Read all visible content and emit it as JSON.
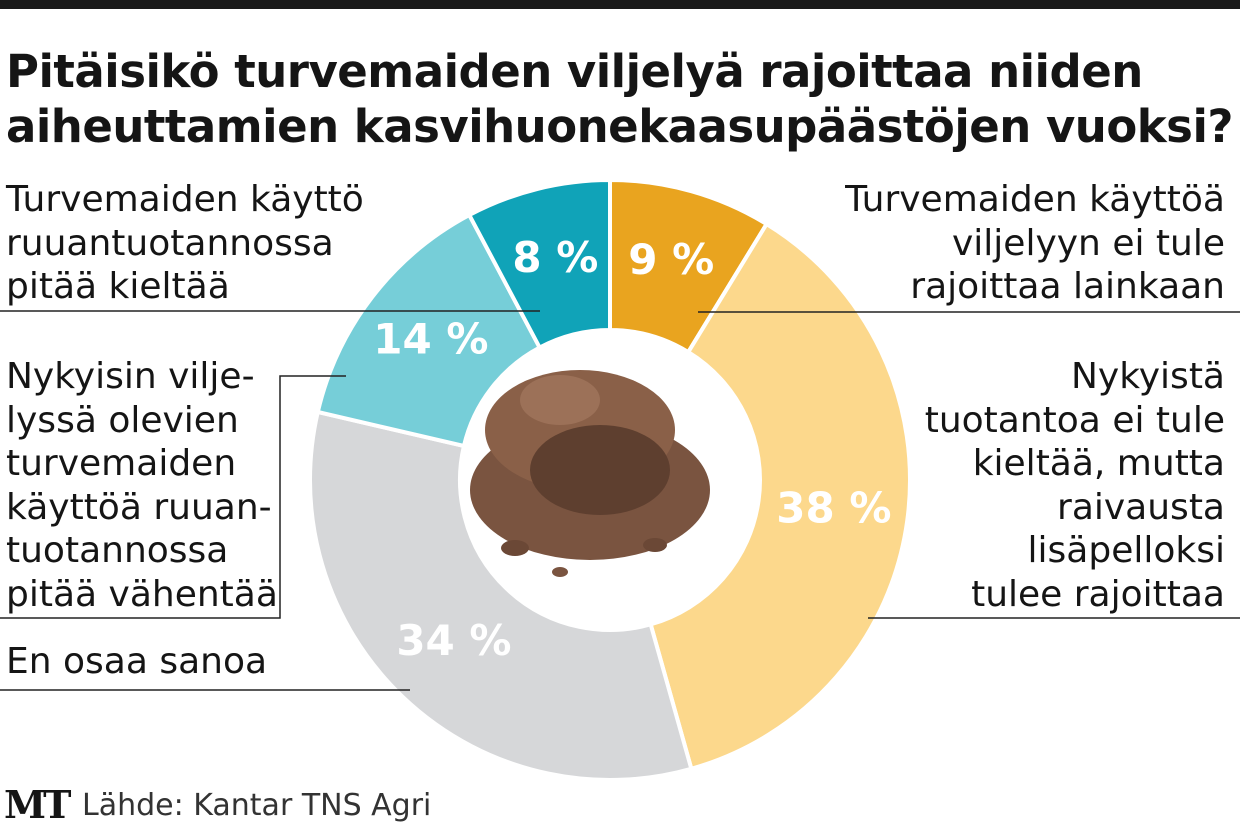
{
  "chart_data": {
    "type": "pie",
    "title": "Pitäisikö turvemaiden viljelyä rajoittaa niiden aiheuttamien kasvihuonekaasupäästöjen vuoksi?",
    "categories": [
      "Turvemaiden käyttöä\nviljelyyn ei tule\nrajoittaa lainkaan",
      "Nykyistä\ntuotantoa ei tule\nkieltää, mutta\nraivausta\nlisäpelloksi\ntulee rajoittaa",
      "En osaa sanoa",
      "Nykyisin vilje-\nlyssä olevien\nturvemaiden\nkäyttöä ruuan-\ntuotannossa\npitää vähentää",
      "Turvemaiden käyttö\nruuantuotannossa\npitää kieltää"
    ],
    "values": [
      9,
      38,
      34,
      14,
      8
    ],
    "value_labels": [
      "9 %",
      "38 %",
      "34 %",
      "14 %",
      "8 %"
    ],
    "colors": [
      "#e9a41f",
      "#fcd88c",
      "#d6d7d9",
      "#76ced8",
      "#10a3b8"
    ],
    "logo": "MT",
    "source": "Lähde: Kantar TNS Agri"
  }
}
